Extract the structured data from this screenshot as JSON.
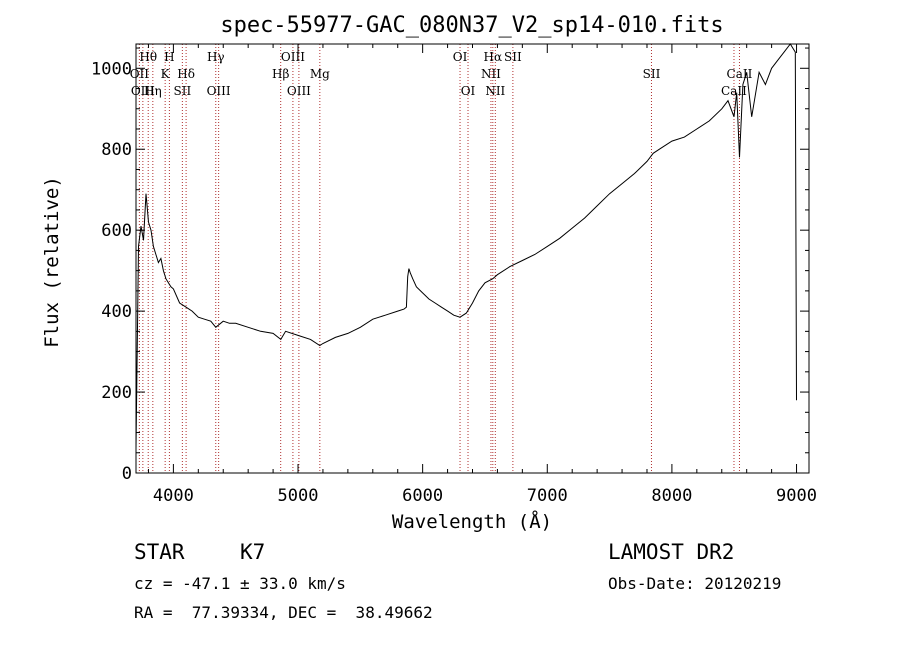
{
  "chart_data": {
    "type": "line",
    "title": "spec-55977-GAC_080N37_V2_sp14-010.fits",
    "xlabel": "Wavelength (Å)",
    "ylabel": "Flux (relative)",
    "xlim": [
      3700,
      9100
    ],
    "ylim": [
      0,
      1060
    ],
    "xticks": [
      4000,
      5000,
      6000,
      7000,
      8000,
      9000
    ],
    "yticks": [
      0,
      200,
      400,
      600,
      800,
      1000
    ],
    "x_tick_labels": [
      "4000",
      "5000",
      "6000",
      "7000",
      "8000",
      "9000"
    ],
    "y_tick_labels": [
      "0",
      "200",
      "400",
      "600",
      "800",
      "1000"
    ],
    "grid": false,
    "series": [
      {
        "x": [
          3700,
          3720,
          3740,
          3760,
          3780,
          3800,
          3820,
          3840,
          3860,
          3880,
          3900,
          3920,
          3940,
          3960,
          3980,
          4000,
          4050,
          4100,
          4150,
          4200,
          4250,
          4300,
          4340,
          4400,
          4450,
          4500,
          4600,
          4700,
          4800,
          4862,
          4900,
          5000,
          5100,
          5175,
          5200,
          5300,
          5400,
          5500,
          5600,
          5700,
          5800,
          5850,
          5870,
          5880,
          5890,
          5900,
          5920,
          5950,
          6000,
          6050,
          6100,
          6150,
          6200,
          6250,
          6300,
          6350,
          6400,
          6450,
          6500,
          6563,
          6600,
          6700,
          6800,
          6900,
          7000,
          7100,
          7200,
          7300,
          7400,
          7500,
          7600,
          7700,
          7800,
          7850,
          7900,
          8000,
          8100,
          8200,
          8300,
          8400,
          8450,
          8498,
          8520,
          8542,
          8570,
          8600,
          8640,
          8662,
          8700,
          8750,
          8800,
          8850,
          8900,
          8950,
          8990,
          9000
        ],
        "y": [
          60,
          560,
          610,
          575,
          690,
          620,
          600,
          560,
          540,
          520,
          530,
          500,
          480,
          470,
          460,
          455,
          420,
          410,
          400,
          385,
          380,
          375,
          360,
          375,
          370,
          370,
          360,
          350,
          345,
          330,
          350,
          340,
          330,
          315,
          320,
          335,
          345,
          360,
          380,
          390,
          400,
          405,
          410,
          485,
          505,
          495,
          480,
          460,
          445,
          430,
          420,
          410,
          400,
          390,
          385,
          395,
          420,
          450,
          470,
          480,
          490,
          510,
          525,
          540,
          560,
          580,
          605,
          630,
          660,
          690,
          715,
          740,
          770,
          790,
          800,
          820,
          830,
          850,
          870,
          900,
          920,
          880,
          940,
          780,
          960,
          990,
          880,
          920,
          990,
          960,
          1000,
          1020,
          1040,
          1060,
          1040,
          180
        ]
      }
    ],
    "spectral_lines": [
      {
        "name": "Hθ",
        "wavelength": 3798,
        "row": 1
      },
      {
        "name": "OII",
        "wavelength": 3727,
        "row": 2
      },
      {
        "name": "OIII",
        "wavelength": 3755,
        "row": 3
      },
      {
        "name": "Hη",
        "wavelength": 3835,
        "row": 3
      },
      {
        "name": "H",
        "wavelength": 3968,
        "row": 1
      },
      {
        "name": "K",
        "wavelength": 3934,
        "row": 2
      },
      {
        "name": "Hδ",
        "wavelength": 4102,
        "row": 2
      },
      {
        "name": "SII",
        "wavelength": 4072,
        "row": 3
      },
      {
        "name": "Hγ",
        "wavelength": 4340,
        "row": 1
      },
      {
        "name": "OIII",
        "wavelength": 4363,
        "row": 3
      },
      {
        "name": "OIII",
        "wavelength": 4959,
        "row": 1
      },
      {
        "name": "Hβ",
        "wavelength": 4861,
        "row": 2
      },
      {
        "name": "Mg",
        "wavelength": 5175,
        "row": 2
      },
      {
        "name": "OIII",
        "wavelength": 5007,
        "row": 3
      },
      {
        "name": "OI",
        "wavelength": 6300,
        "row": 1
      },
      {
        "name": "OI",
        "wavelength": 6364,
        "row": 3
      },
      {
        "name": "Hα",
        "wavelength": 6563,
        "row": 1
      },
      {
        "name": "SII",
        "wavelength": 6724,
        "row": 1
      },
      {
        "name": "NII",
        "wavelength": 6548,
        "row": 2
      },
      {
        "name": "NII",
        "wavelength": 6583,
        "row": 3
      },
      {
        "name": "SII",
        "wavelength": 7836,
        "row": 2
      },
      {
        "name": "CaII",
        "wavelength": 8542,
        "row": 2
      },
      {
        "name": "CaII",
        "wavelength": 8498,
        "row": 3
      }
    ]
  },
  "info": {
    "object_class": "STAR",
    "subclass": "K7",
    "redshift_line": "cz = -47.1 ± 33.0 km/s",
    "coords_line": "RA =  77.39334, DEC =  38.49662",
    "survey": "LAMOST DR2",
    "obs_date": "Obs-Date: 20120219"
  },
  "colors": {
    "spectrum": "#000000",
    "axis": "#000000",
    "line_marker": "#b03030"
  }
}
